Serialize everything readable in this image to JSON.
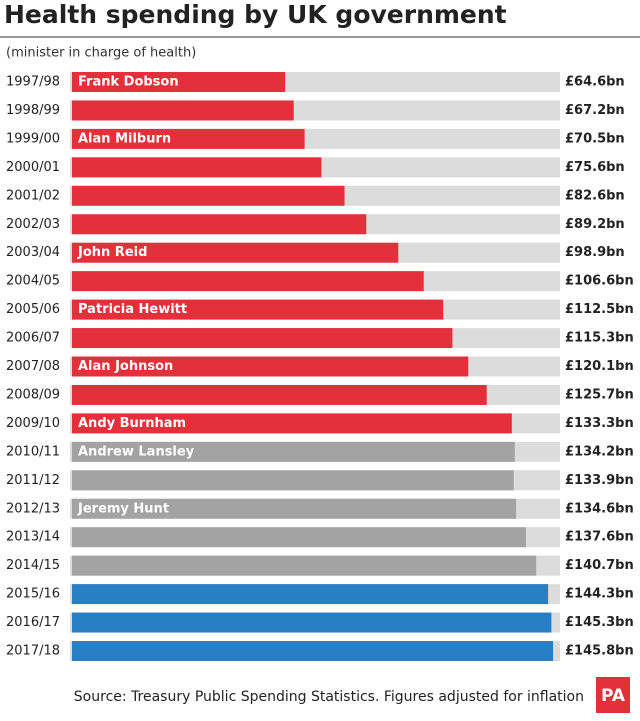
{
  "chart_data": {
    "type": "bar",
    "orientation": "horizontal",
    "title": "Health spending by UK government",
    "subtitle": "(minister in charge of health)",
    "source": "Source: Treasury Public Spending Statistics. Figures adjusted for inflation",
    "logo": "PA",
    "categories": [
      "1997/98",
      "1998/99",
      "1999/00",
      "2000/01",
      "2001/02",
      "2002/03",
      "2003/04",
      "2004/05",
      "2005/06",
      "2006/07",
      "2007/08",
      "2008/09",
      "2009/10",
      "2010/11",
      "2011/12",
      "2012/13",
      "2013/14",
      "2014/15",
      "2015/16",
      "2016/17",
      "2017/18"
    ],
    "values": [
      64.6,
      67.2,
      70.5,
      75.6,
      82.6,
      89.2,
      98.9,
      106.6,
      112.5,
      115.3,
      120.1,
      125.7,
      133.3,
      134.2,
      133.9,
      134.6,
      137.6,
      140.7,
      144.3,
      145.3,
      145.8
    ],
    "value_labels": [
      "£64.6bn",
      "£67.2bn",
      "£70.5bn",
      "£75.6bn",
      "£82.6bn",
      "£89.2bn",
      "£98.9bn",
      "£106.6bn",
      "£112.5bn",
      "£115.3bn",
      "£120.1bn",
      "£125.7bn",
      "£133.3bn",
      "£134.2bn",
      "£133.9bn",
      "£134.6bn",
      "£137.6bn",
      "£140.7bn",
      "£144.3bn",
      "£145.3bn",
      "£145.8bn"
    ],
    "minister_labels": [
      "Frank Dobson",
      null,
      "Alan Milburn",
      null,
      null,
      null,
      "John Reid",
      null,
      "Patricia Hewitt",
      null,
      "Alan Johnson",
      null,
      "Andy Burnham",
      "Andrew Lansley",
      null,
      "Jeremy Hunt",
      null,
      null,
      null,
      null,
      null
    ],
    "colors": [
      "#e3303a",
      "#e3303a",
      "#e3303a",
      "#e3303a",
      "#e3303a",
      "#e3303a",
      "#e3303a",
      "#e3303a",
      "#e3303a",
      "#e3303a",
      "#e3303a",
      "#e3303a",
      "#e3303a",
      "#a3a3a3",
      "#a3a3a3",
      "#a3a3a3",
      "#a3a3a3",
      "#a3a3a3",
      "#2a7fc4",
      "#2a7fc4",
      "#2a7fc4"
    ],
    "xlim": [
      0,
      147
    ]
  }
}
